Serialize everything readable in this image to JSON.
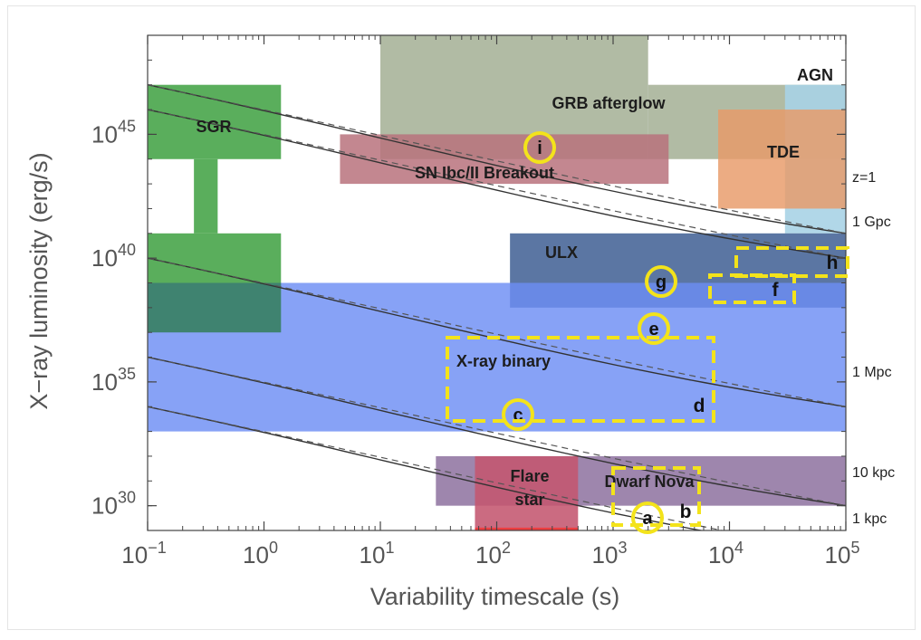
{
  "chart_data": {
    "type": "scatter",
    "xscale": "log",
    "yscale": "log",
    "xlim": [
      0.1,
      100000
    ],
    "ylim": [
      1e+29,
      1e+49
    ],
    "xlabel": "Variability timescale (s)",
    "ylabel": "X−ray luminosity (erg/s)",
    "grid": false,
    "x_ticks": [
      {
        "value": 0.1,
        "base": "10",
        "exp": "−1"
      },
      {
        "value": 1,
        "base": "10",
        "exp": "0"
      },
      {
        "value": 10,
        "base": "10",
        "exp": "1"
      },
      {
        "value": 100,
        "base": "10",
        "exp": "2"
      },
      {
        "value": 1000,
        "base": "10",
        "exp": "3"
      },
      {
        "value": 10000,
        "base": "10",
        "exp": "4"
      },
      {
        "value": 100000,
        "base": "10",
        "exp": "5"
      }
    ],
    "y_ticks": [
      {
        "value": 1e+30,
        "base": "10",
        "exp": "30"
      },
      {
        "value": 1e+35,
        "base": "10",
        "exp": "35"
      },
      {
        "value": 1e+40,
        "base": "10",
        "exp": "40"
      },
      {
        "value": 1e+45,
        "base": "10",
        "exp": "45"
      }
    ],
    "regions": [
      {
        "label": "GRB afterglow",
        "color": "#a9b49a",
        "opacity": 0.9,
        "rects": [
          [
            10,
            2000,
            1e+44,
            1e+49
          ],
          [
            2000,
            100000,
            1e+44,
            1e+47
          ]
        ]
      },
      {
        "label": "SN Ibc/II Breakout",
        "color": "#b9727c",
        "opacity": 0.85,
        "rects": [
          [
            4.5,
            3000,
            1e+43,
            1e+45
          ]
        ]
      },
      {
        "label": "AGN",
        "color": "#a8d3e5",
        "opacity": 0.9,
        "rects": [
          [
            30000,
            100000,
            1e+41,
            1e+47
          ]
        ]
      },
      {
        "label": "TDE",
        "color": "#e89a68",
        "opacity": 0.82,
        "rects": [
          [
            8000,
            100000,
            1e+42,
            1e+46
          ]
        ]
      },
      {
        "label": "SGR",
        "color": "#48a54a",
        "opacity": 0.9,
        "rects": [
          [
            0.1,
            1.4,
            1e+44,
            1e+47
          ],
          [
            0.25,
            0.4,
            1e+41,
            1e+44
          ],
          [
            0.1,
            1.4,
            1e+37,
            1e+41
          ]
        ]
      },
      {
        "label": "ULX",
        "color": "#4d6a9b",
        "opacity": 0.92,
        "rects": [
          [
            130,
            100000,
            1e+38,
            1e+41
          ]
        ]
      },
      {
        "label": "X-ray binary",
        "color": "#6d8df4",
        "opacity": 0.82,
        "rects": [
          [
            0.1,
            100000,
            1e+33,
            1e+39
          ]
        ]
      },
      {
        "label": "Dwarf Nova",
        "color": "#8d719f",
        "opacity": 0.85,
        "rects": [
          [
            30,
            100000,
            1e+30,
            1e+32
          ]
        ]
      },
      {
        "label": "Flare star",
        "color": "#c4566f",
        "opacity": 0.88,
        "rects": [
          [
            65,
            500,
            1e+29,
            1e+32
          ]
        ]
      }
    ],
    "distance_lines": [
      {
        "label": "z=1",
        "solid": [
          [
            0.1,
            1e+47
          ],
          [
            1,
            1e+46
          ],
          [
            10,
            1e+45
          ],
          [
            100,
            1e+44
          ],
          [
            1000,
            1e+43
          ],
          [
            10000,
            1e+42
          ],
          [
            100000,
            1e+41
          ]
        ]
      },
      {
        "label": "1 Gpc",
        "solid": [
          [
            0.1,
            1e+46
          ],
          [
            1,
            1e+45
          ],
          [
            10,
            1e+44
          ],
          [
            100,
            1e+43
          ],
          [
            1000,
            1e+42
          ],
          [
            10000,
            1e+41
          ],
          [
            100000,
            1e+40
          ]
        ]
      },
      {
        "label": "1 Mpc",
        "solid": [
          [
            0.1,
            1e+40
          ],
          [
            1,
            1e+39
          ],
          [
            10,
            1e+38
          ],
          [
            100,
            1e+37
          ],
          [
            1000,
            1e+36
          ],
          [
            10000,
            1e+35
          ],
          [
            100000,
            1e+34
          ]
        ]
      },
      {
        "label": "10 kpc",
        "solid": [
          [
            0.1,
            1e+36
          ],
          [
            1,
            1e+35
          ],
          [
            10,
            1e+34
          ],
          [
            100,
            1e+33
          ],
          [
            1000,
            1e+32
          ],
          [
            10000,
            1e+31
          ],
          [
            100000,
            1e+30
          ]
        ]
      },
      {
        "label": "1 kpc",
        "solid": [
          [
            0.1,
            1e+34
          ],
          [
            1,
            1e+33
          ],
          [
            10,
            1e+32
          ],
          [
            100,
            1e+31
          ],
          [
            1000,
            1e+30
          ],
          [
            10000,
            1e+29
          ],
          [
            100000,
            1e+28
          ]
        ]
      }
    ],
    "labeled_points": [
      {
        "label": "a",
        "x": 2000,
        "y": 1e+30
      },
      {
        "label": "c",
        "x": 150,
        "y": 1e+34
      },
      {
        "label": "e",
        "x": 2000,
        "y": 1e+37
      },
      {
        "label": "g",
        "x": 2000,
        "y": 1e+39
      },
      {
        "label": "i",
        "x": 200,
        "y": 1e+45
      }
    ],
    "labeled_boxes": [
      {
        "label": "b",
        "x": [
          1000,
          5000
        ],
        "y": [
          1e+30,
          1e+32
        ]
      },
      {
        "label": "d",
        "x": [
          50,
          6000
        ],
        "y": [
          1e+33,
          1e+37
        ]
      },
      {
        "label": "f",
        "x": [
          8000,
          40000
        ],
        "y": [
          1e+38,
          1e+39
        ]
      },
      {
        "label": "h",
        "x": [
          10000,
          100000
        ],
        "y": [
          1e+39,
          1e+40
        ]
      }
    ],
    "annotation_color": "#f3e31b"
  }
}
